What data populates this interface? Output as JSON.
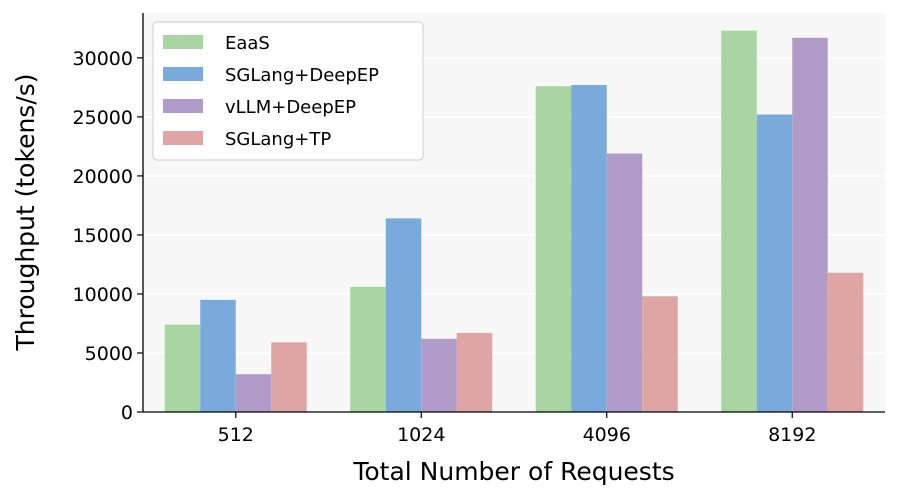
{
  "chart_data": {
    "type": "bar",
    "xlabel": "Total Number of Requests",
    "ylabel": "Throughput (tokens/s)",
    "categories": [
      "512",
      "1024",
      "4096",
      "8192"
    ],
    "series": [
      {
        "name": "EaaS",
        "color": "#a8d5a2",
        "values": [
          7400,
          10600,
          27600,
          32300
        ]
      },
      {
        "name": "SGLang+DeepEP",
        "color": "#7aaadb",
        "values": [
          9500,
          16400,
          27700,
          25200
        ]
      },
      {
        "name": "vLLM+DeepEP",
        "color": "#b09ac8",
        "values": [
          3200,
          6200,
          21900,
          31700
        ]
      },
      {
        "name": "SGLang+TP",
        "color": "#dea5a4",
        "values": [
          5900,
          6700,
          9800,
          11800
        ]
      }
    ],
    "yticks": [
      0,
      5000,
      10000,
      15000,
      20000,
      25000,
      30000
    ],
    "ylim": [
      0,
      33800
    ],
    "grid": "horizontal",
    "legend_position": "top-left",
    "plot_background": "#f7f7f7"
  }
}
